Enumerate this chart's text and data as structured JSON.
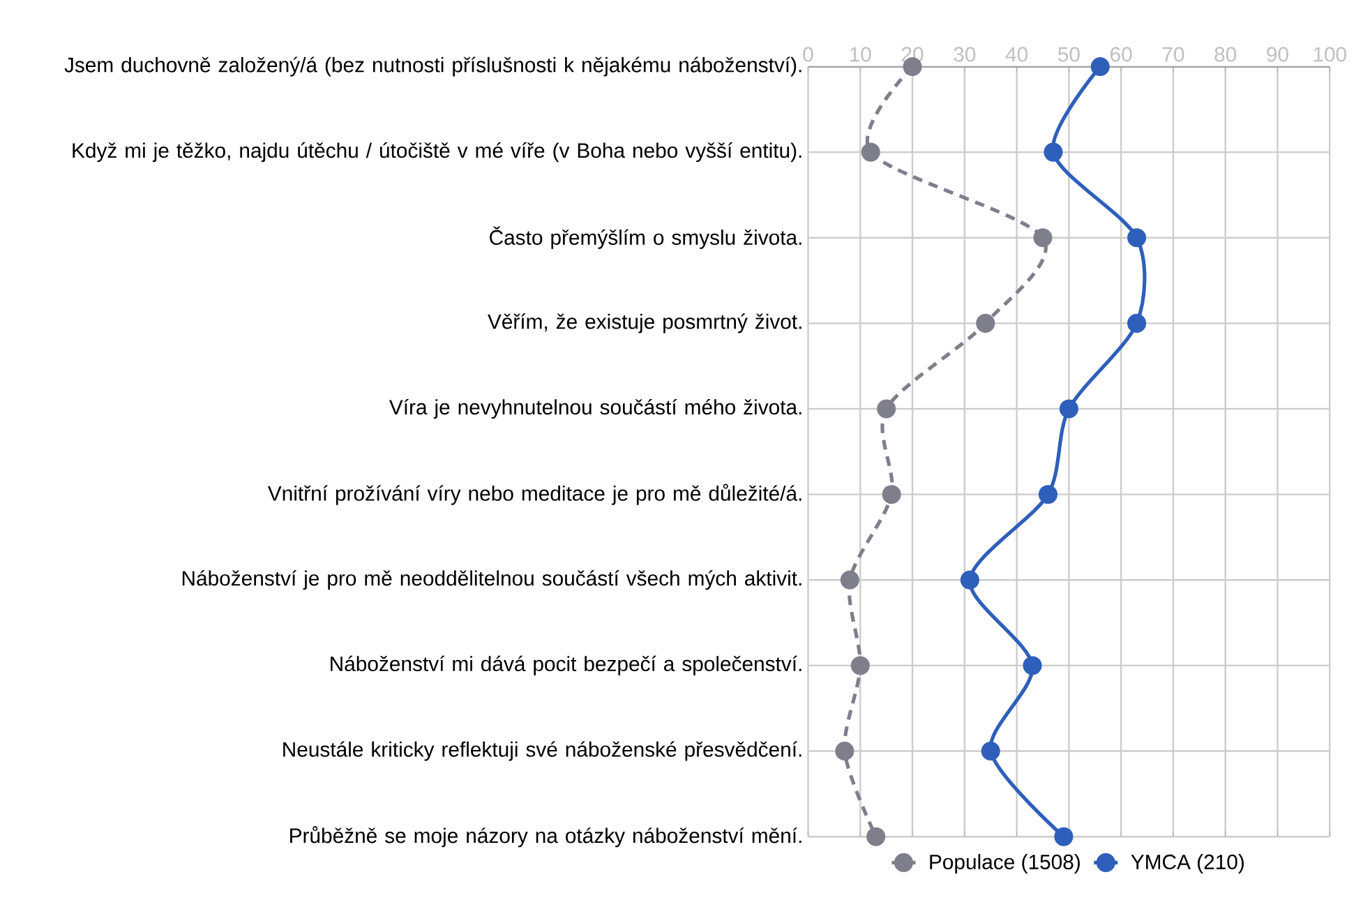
{
  "chart_data": {
    "type": "line",
    "orientation": "horizontal",
    "categories": [
      "Jsem duchovně založený/á (bez nutnosti příslušnosti k nějakému náboženství).",
      "Když mi je těžko, najdu útěchu / útočiště v mé víře (v Boha nebo vyšší entitu).",
      "Často přemýšlím o smyslu života.",
      "Věřím, že existuje posmrtný život.",
      "Víra je nevyhnutelnou součástí mého života.",
      "Vnitřní prožívání víry nebo meditace je pro mě důležité/á.",
      "Náboženství je pro mě neoddělitelnou součástí všech mých aktivit.",
      "Náboženství mi dává pocit bezpečí a společenství.",
      "Neustále kriticky reflektuji své náboženské přesvědčení.",
      "Průběžně se moje názory na otázky náboženství mění."
    ],
    "series": [
      {
        "name": "Populace (1508)",
        "color": "#7f7f8c",
        "line_style": "dashed",
        "values": [
          20,
          12,
          45,
          34,
          15,
          16,
          8,
          10,
          7,
          13
        ]
      },
      {
        "name": "YMCA (210)",
        "color": "#2e5fba",
        "line_style": "solid",
        "values": [
          56,
          47,
          63,
          63,
          50,
          46,
          31,
          43,
          35,
          49
        ]
      }
    ],
    "xlim": [
      0,
      100
    ],
    "xticks": [
      0,
      10,
      20,
      30,
      40,
      50,
      60,
      70,
      80,
      90,
      100
    ],
    "grid": true,
    "legend": "bottom",
    "marker": "circle"
  }
}
